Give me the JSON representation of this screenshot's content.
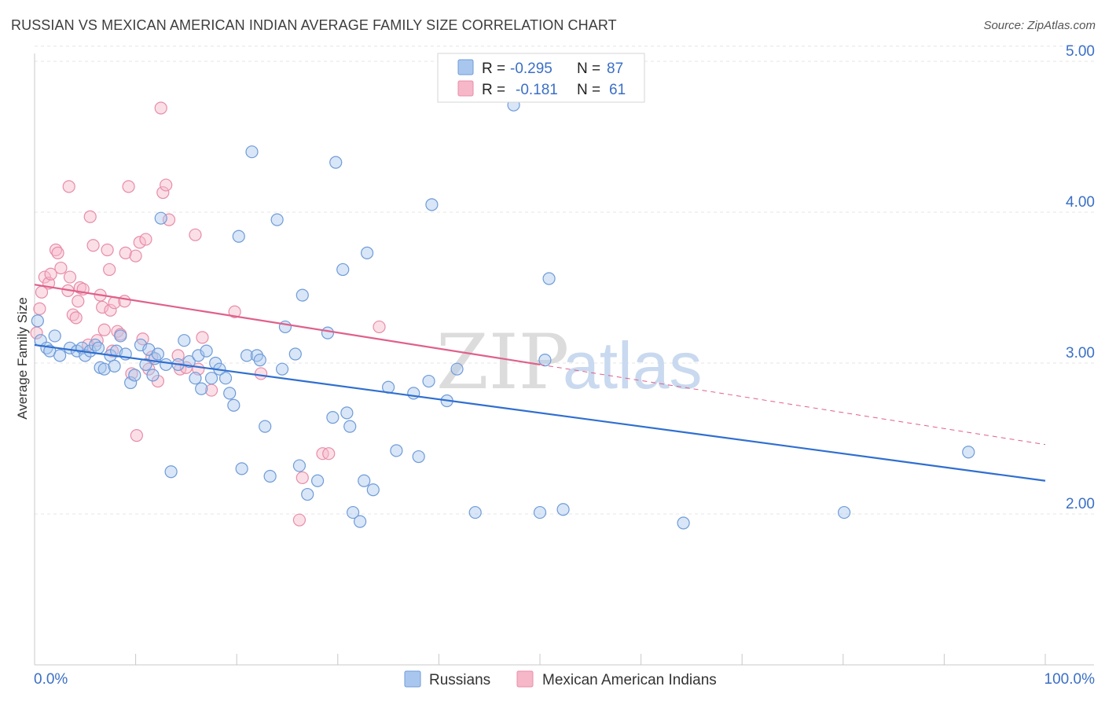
{
  "title": "RUSSIAN VS MEXICAN AMERICAN INDIAN AVERAGE FAMILY SIZE CORRELATION CHART",
  "source": "Source: ZipAtlas.com",
  "watermark": {
    "part1": "ZIP",
    "part2": "atlas"
  },
  "legend_box": {
    "rows": [
      {
        "r_label": "R = ",
        "r_value": "-0.295",
        "n_label": "N = ",
        "n_value": "87"
      },
      {
        "r_label": "R = ",
        "r_value": "-0.181",
        "n_label": "N = ",
        "n_value": "61"
      }
    ]
  },
  "bottom_legend": [
    "Russians",
    "Mexican American Indians"
  ],
  "colors": {
    "russians_fill": "#a9c7ee",
    "russians_stroke": "#6f9bd8",
    "russians_line": "#2f6fd0",
    "mexican_fill": "#f6b7c9",
    "mexican_stroke": "#e88ca8",
    "mexican_line": "#e0608a",
    "tick_label": "#3b6fc6",
    "grid": "#e4e4e4"
  },
  "chart_data": {
    "type": "scatter",
    "title": "RUSSIAN VS MEXICAN AMERICAN INDIAN AVERAGE FAMILY SIZE CORRELATION CHART",
    "xlabel": "",
    "ylabel": "Average Family Size",
    "xlim": [
      0,
      100
    ],
    "ylim": [
      1.0,
      5.1
    ],
    "x_tick_labels": [
      "0.0%",
      "100.0%"
    ],
    "y_ticks": [
      2.0,
      3.0,
      4.0,
      5.0
    ],
    "y_tick_labels": [
      "2.00",
      "3.00",
      "4.00",
      "5.00"
    ],
    "grid": true,
    "legend_position": "top-center",
    "series": [
      {
        "name": "Russians",
        "r": -0.295,
        "n": 87,
        "trend": {
          "x": [
            0,
            100
          ],
          "y": [
            3.12,
            2.22
          ],
          "style": "solid"
        },
        "points": [
          [
            0.3,
            3.28
          ],
          [
            0.6,
            3.15
          ],
          [
            1.2,
            3.1
          ],
          [
            1.5,
            3.08
          ],
          [
            2.0,
            3.18
          ],
          [
            2.5,
            3.05
          ],
          [
            3.5,
            3.1
          ],
          [
            4.2,
            3.08
          ],
          [
            4.7,
            3.1
          ],
          [
            5.0,
            3.05
          ],
          [
            5.5,
            3.08
          ],
          [
            6.0,
            3.12
          ],
          [
            6.3,
            3.1
          ],
          [
            6.5,
            2.97
          ],
          [
            6.9,
            2.96
          ],
          [
            7.5,
            3.05
          ],
          [
            7.9,
            2.98
          ],
          [
            8.1,
            3.08
          ],
          [
            8.5,
            3.18
          ],
          [
            9.0,
            3.06
          ],
          [
            9.5,
            2.87
          ],
          [
            9.9,
            2.92
          ],
          [
            10.5,
            3.12
          ],
          [
            11.0,
            2.99
          ],
          [
            11.3,
            3.09
          ],
          [
            11.7,
            2.92
          ],
          [
            11.9,
            3.03
          ],
          [
            12.2,
            3.06
          ],
          [
            12.5,
            3.96
          ],
          [
            13.0,
            2.99
          ],
          [
            13.5,
            2.28
          ],
          [
            14.2,
            2.99
          ],
          [
            14.8,
            3.15
          ],
          [
            15.3,
            3.01
          ],
          [
            15.9,
            2.9
          ],
          [
            16.2,
            3.05
          ],
          [
            16.5,
            2.83
          ],
          [
            17.0,
            3.08
          ],
          [
            17.5,
            2.9
          ],
          [
            17.9,
            3.0
          ],
          [
            18.3,
            2.96
          ],
          [
            18.9,
            2.9
          ],
          [
            19.3,
            2.8
          ],
          [
            19.7,
            2.72
          ],
          [
            20.2,
            3.84
          ],
          [
            20.5,
            2.3
          ],
          [
            21.0,
            3.05
          ],
          [
            21.5,
            4.4
          ],
          [
            22.0,
            3.05
          ],
          [
            22.3,
            3.02
          ],
          [
            22.8,
            2.58
          ],
          [
            23.3,
            2.25
          ],
          [
            24.0,
            3.95
          ],
          [
            24.5,
            2.96
          ],
          [
            24.8,
            3.24
          ],
          [
            25.8,
            3.06
          ],
          [
            26.2,
            2.32
          ],
          [
            26.5,
            3.45
          ],
          [
            27.0,
            2.13
          ],
          [
            28.0,
            2.22
          ],
          [
            29.0,
            3.2
          ],
          [
            29.5,
            2.64
          ],
          [
            29.8,
            4.33
          ],
          [
            30.5,
            3.62
          ],
          [
            30.9,
            2.67
          ],
          [
            31.2,
            2.58
          ],
          [
            31.5,
            2.01
          ],
          [
            32.2,
            1.95
          ],
          [
            32.6,
            2.22
          ],
          [
            32.9,
            3.73
          ],
          [
            33.5,
            2.16
          ],
          [
            35.0,
            2.84
          ],
          [
            35.8,
            2.42
          ],
          [
            37.5,
            2.8
          ],
          [
            38.0,
            2.38
          ],
          [
            39.0,
            2.88
          ],
          [
            39.3,
            4.05
          ],
          [
            40.8,
            2.75
          ],
          [
            41.8,
            2.96
          ],
          [
            43.6,
            2.01
          ],
          [
            47.4,
            4.71
          ],
          [
            50.0,
            2.01
          ],
          [
            50.5,
            3.02
          ],
          [
            50.9,
            3.56
          ],
          [
            52.3,
            2.03
          ],
          [
            64.2,
            1.94
          ],
          [
            80.1,
            2.01
          ],
          [
            92.4,
            2.41
          ]
        ]
      },
      {
        "name": "Mexican American Indians",
        "r": -0.181,
        "n": 61,
        "trend": {
          "x": [
            0,
            50
          ],
          "y": [
            3.52,
            2.99
          ],
          "style": "solid",
          "extension": {
            "x": [
              50,
              100
            ],
            "y": [
              2.99,
              2.46
            ],
            "style": "dashed"
          }
        },
        "points": [
          [
            0.2,
            3.2
          ],
          [
            0.5,
            3.36
          ],
          [
            0.7,
            3.47
          ],
          [
            1.0,
            3.57
          ],
          [
            1.4,
            3.53
          ],
          [
            1.6,
            3.59
          ],
          [
            2.1,
            3.75
          ],
          [
            2.3,
            3.73
          ],
          [
            2.6,
            3.63
          ],
          [
            3.3,
            3.48
          ],
          [
            3.4,
            4.17
          ],
          [
            3.5,
            3.57
          ],
          [
            3.8,
            3.32
          ],
          [
            4.1,
            3.3
          ],
          [
            4.3,
            3.41
          ],
          [
            4.5,
            3.5
          ],
          [
            4.8,
            3.49
          ],
          [
            5.3,
            3.12
          ],
          [
            5.5,
            3.97
          ],
          [
            5.8,
            3.78
          ],
          [
            6.2,
            3.15
          ],
          [
            6.5,
            3.45
          ],
          [
            6.7,
            3.37
          ],
          [
            6.9,
            3.22
          ],
          [
            7.2,
            3.75
          ],
          [
            7.4,
            3.62
          ],
          [
            7.5,
            3.35
          ],
          [
            7.7,
            3.08
          ],
          [
            7.9,
            3.4
          ],
          [
            8.2,
            3.21
          ],
          [
            8.5,
            3.19
          ],
          [
            8.9,
            3.41
          ],
          [
            9.0,
            3.73
          ],
          [
            9.3,
            4.17
          ],
          [
            9.6,
            2.93
          ],
          [
            10.0,
            3.71
          ],
          [
            10.1,
            2.52
          ],
          [
            10.4,
            3.8
          ],
          [
            10.7,
            3.16
          ],
          [
            11.0,
            3.82
          ],
          [
            11.3,
            2.96
          ],
          [
            11.6,
            3.04
          ],
          [
            12.2,
            2.88
          ],
          [
            12.5,
            4.69
          ],
          [
            12.7,
            4.13
          ],
          [
            13.0,
            4.18
          ],
          [
            13.3,
            3.95
          ],
          [
            14.2,
            3.05
          ],
          [
            14.4,
            2.96
          ],
          [
            15.0,
            2.97
          ],
          [
            15.9,
            3.85
          ],
          [
            16.2,
            2.96
          ],
          [
            16.6,
            3.17
          ],
          [
            17.5,
            2.82
          ],
          [
            19.8,
            3.34
          ],
          [
            22.4,
            2.93
          ],
          [
            26.2,
            1.96
          ],
          [
            26.5,
            2.24
          ],
          [
            28.5,
            2.4
          ],
          [
            29.1,
            2.4
          ],
          [
            34.1,
            3.24
          ]
        ]
      }
    ]
  }
}
